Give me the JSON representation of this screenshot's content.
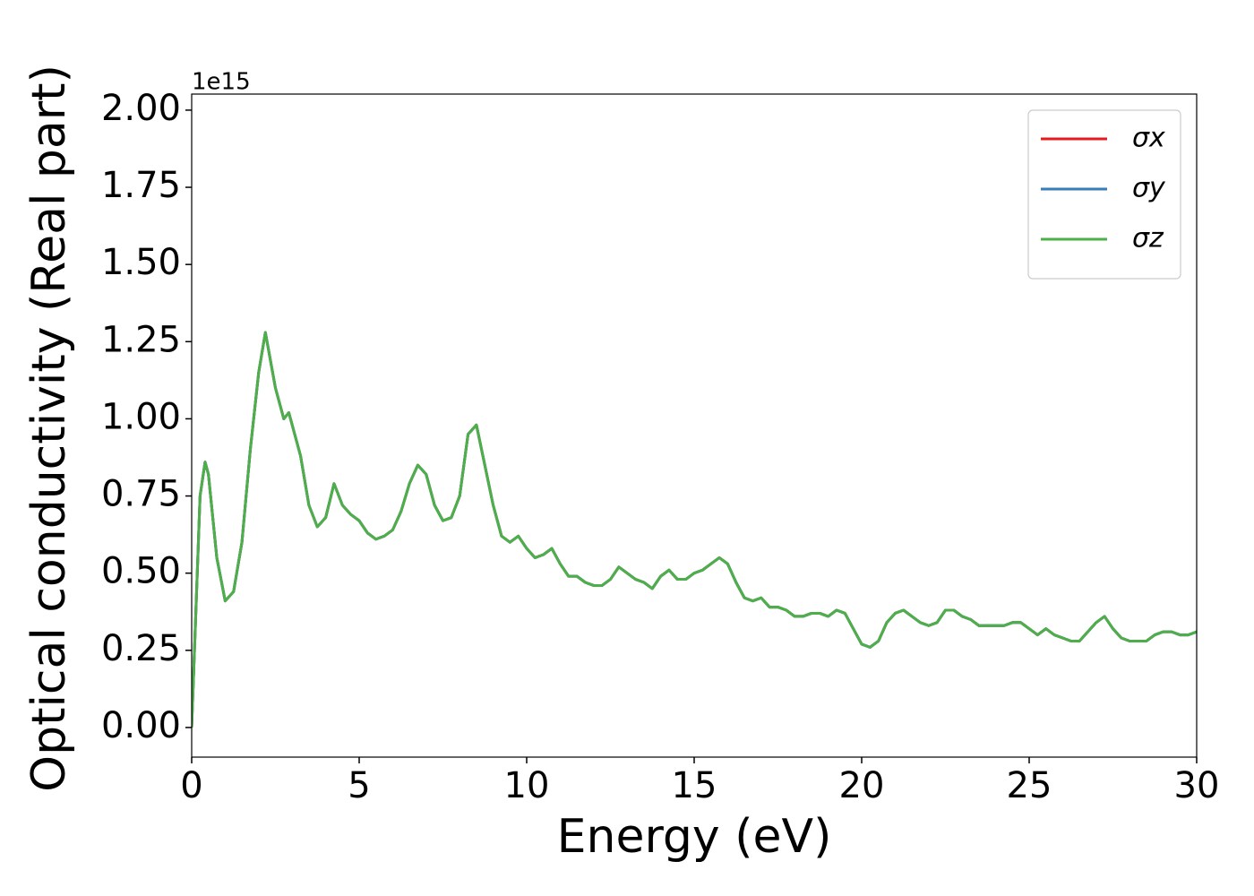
{
  "chart_data": {
    "type": "line",
    "x_label": "Energy (eV)",
    "y_label": "Optical conductivity (Real part)",
    "offset_text": "1e15",
    "xlim": [
      0,
      30
    ],
    "ylim": [
      -0.096,
      2.052
    ],
    "xticks": [
      0,
      5,
      10,
      15,
      20,
      25,
      30
    ],
    "yticks": [
      {
        "value": 0,
        "label": "0.00"
      },
      0.25,
      {
        "value": 0.5,
        "label": "0.50"
      },
      0.75,
      {
        "value": 1,
        "label": "1.00"
      },
      1.25,
      {
        "value": 1.5,
        "label": "1.50"
      },
      1.75,
      {
        "value": 2,
        "label": "2.00"
      }
    ],
    "legend": "upper right",
    "x": [
      0,
      0.1,
      0.25,
      0.4,
      0.5,
      0.75,
      1,
      1.25,
      1.5,
      1.75,
      2,
      2.2,
      2.5,
      2.75,
      2.9,
      3.25,
      3.5,
      3.75,
      4,
      4.25,
      4.5,
      4.75,
      5,
      5.25,
      5.5,
      5.75,
      6,
      6.25,
      6.5,
      6.75,
      7,
      7.25,
      7.5,
      7.75,
      8,
      8.25,
      8.5,
      8.75,
      9,
      9.25,
      9.5,
      9.75,
      10,
      10.25,
      10.5,
      10.75,
      11,
      11.25,
      11.5,
      11.75,
      12,
      12.25,
      12.5,
      12.75,
      13,
      13.25,
      13.5,
      13.75,
      14,
      14.25,
      14.5,
      14.75,
      15,
      15.25,
      15.5,
      15.75,
      16,
      16.25,
      16.5,
      16.75,
      17,
      17.25,
      17.5,
      17.75,
      18,
      18.25,
      18.5,
      18.75,
      19,
      19.25,
      19.5,
      19.75,
      20,
      20.25,
      20.5,
      20.75,
      21,
      21.25,
      21.5,
      21.75,
      22,
      22.25,
      22.5,
      22.75,
      23,
      23.25,
      23.5,
      23.75,
      24,
      24.25,
      24.5,
      24.75,
      25,
      25.25,
      25.5,
      25.75,
      26,
      26.25,
      26.5,
      26.75,
      27,
      27.25,
      27.5,
      27.75,
      28,
      28.25,
      28.5,
      28.75,
      29,
      29.25,
      29.5,
      29.75,
      30
    ],
    "series": [
      {
        "name": "σx",
        "color": "#e41a1c",
        "values": [
          0,
          0.3,
          0.75,
          0.86,
          0.82,
          0.55,
          0.41,
          0.44,
          0.6,
          0.9,
          1.15,
          1.28,
          1.1,
          1.0,
          1.02,
          0.88,
          0.72,
          0.65,
          0.68,
          0.79,
          0.72,
          0.69,
          0.67,
          0.63,
          0.61,
          0.62,
          0.64,
          0.7,
          0.79,
          0.85,
          0.82,
          0.72,
          0.67,
          0.68,
          0.75,
          0.95,
          0.98,
          0.85,
          0.72,
          0.62,
          0.6,
          0.62,
          0.58,
          0.55,
          0.56,
          0.58,
          0.53,
          0.49,
          0.49,
          0.47,
          0.46,
          0.46,
          0.48,
          0.52,
          0.5,
          0.48,
          0.47,
          0.45,
          0.49,
          0.51,
          0.48,
          0.48,
          0.5,
          0.51,
          0.53,
          0.55,
          0.53,
          0.47,
          0.42,
          0.41,
          0.42,
          0.39,
          0.39,
          0.38,
          0.36,
          0.36,
          0.37,
          0.37,
          0.36,
          0.38,
          0.37,
          0.32,
          0.27,
          0.26,
          0.28,
          0.34,
          0.37,
          0.38,
          0.36,
          0.34,
          0.33,
          0.34,
          0.38,
          0.38,
          0.36,
          0.35,
          0.33,
          0.33,
          0.33,
          0.33,
          0.34,
          0.34,
          0.32,
          0.3,
          0.32,
          0.3,
          0.29,
          0.28,
          0.28,
          0.31,
          0.34,
          0.36,
          0.32,
          0.29,
          0.28,
          0.28,
          0.28,
          0.3,
          0.31,
          0.31,
          0.3,
          0.3,
          0.31
        ]
      },
      {
        "name": "σy",
        "color": "#377eb8",
        "values": [
          0,
          0.3,
          0.75,
          0.86,
          0.82,
          0.55,
          0.41,
          0.44,
          0.6,
          0.9,
          1.15,
          1.28,
          1.1,
          1.0,
          1.02,
          0.88,
          0.72,
          0.65,
          0.68,
          0.79,
          0.72,
          0.69,
          0.67,
          0.63,
          0.61,
          0.62,
          0.64,
          0.7,
          0.79,
          0.85,
          0.82,
          0.72,
          0.67,
          0.68,
          0.75,
          0.95,
          0.98,
          0.85,
          0.72,
          0.62,
          0.6,
          0.62,
          0.58,
          0.55,
          0.56,
          0.58,
          0.53,
          0.49,
          0.49,
          0.47,
          0.46,
          0.46,
          0.48,
          0.52,
          0.5,
          0.48,
          0.47,
          0.45,
          0.49,
          0.51,
          0.48,
          0.48,
          0.5,
          0.51,
          0.53,
          0.55,
          0.53,
          0.47,
          0.42,
          0.41,
          0.42,
          0.39,
          0.39,
          0.38,
          0.36,
          0.36,
          0.37,
          0.37,
          0.36,
          0.38,
          0.37,
          0.32,
          0.27,
          0.26,
          0.28,
          0.34,
          0.37,
          0.38,
          0.36,
          0.34,
          0.33,
          0.34,
          0.38,
          0.38,
          0.36,
          0.35,
          0.33,
          0.33,
          0.33,
          0.33,
          0.34,
          0.34,
          0.32,
          0.3,
          0.32,
          0.3,
          0.29,
          0.28,
          0.28,
          0.31,
          0.34,
          0.36,
          0.32,
          0.29,
          0.28,
          0.28,
          0.28,
          0.3,
          0.31,
          0.31,
          0.3,
          0.3,
          0.31
        ]
      },
      {
        "name": "σz",
        "color": "#4daf4a",
        "values": [
          0,
          0.3,
          0.75,
          0.86,
          0.82,
          0.55,
          0.41,
          0.44,
          0.6,
          0.9,
          1.15,
          1.28,
          1.1,
          1.0,
          1.02,
          0.88,
          0.72,
          0.65,
          0.68,
          0.79,
          0.72,
          0.69,
          0.67,
          0.63,
          0.61,
          0.62,
          0.64,
          0.7,
          0.79,
          0.85,
          0.82,
          0.72,
          0.67,
          0.68,
          0.75,
          0.95,
          0.98,
          0.85,
          0.72,
          0.62,
          0.6,
          0.62,
          0.58,
          0.55,
          0.56,
          0.58,
          0.53,
          0.49,
          0.49,
          0.47,
          0.46,
          0.46,
          0.48,
          0.52,
          0.5,
          0.48,
          0.47,
          0.45,
          0.49,
          0.51,
          0.48,
          0.48,
          0.5,
          0.51,
          0.53,
          0.55,
          0.53,
          0.47,
          0.42,
          0.41,
          0.42,
          0.39,
          0.39,
          0.38,
          0.36,
          0.36,
          0.37,
          0.37,
          0.36,
          0.38,
          0.37,
          0.32,
          0.27,
          0.26,
          0.28,
          0.34,
          0.37,
          0.38,
          0.36,
          0.34,
          0.33,
          0.34,
          0.38,
          0.38,
          0.36,
          0.35,
          0.33,
          0.33,
          0.33,
          0.33,
          0.34,
          0.34,
          0.32,
          0.3,
          0.32,
          0.3,
          0.29,
          0.28,
          0.28,
          0.31,
          0.34,
          0.36,
          0.32,
          0.29,
          0.28,
          0.28,
          0.28,
          0.3,
          0.31,
          0.31,
          0.3,
          0.3,
          0.31
        ]
      }
    ]
  }
}
